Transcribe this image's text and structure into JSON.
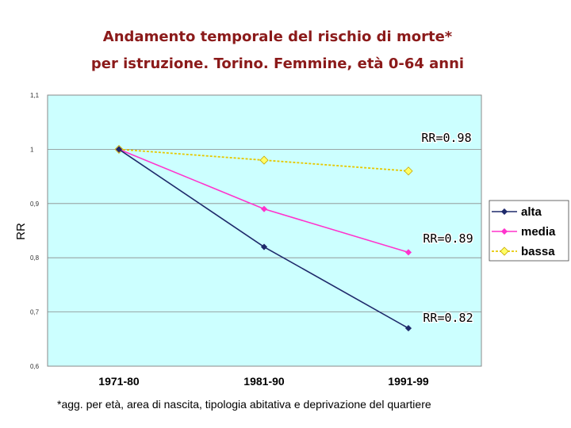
{
  "header": {
    "title_line1": "Andamento temporale del rischio di morte*",
    "title_line2": "per istruzione. Torino. Femmine, età 0-64 anni"
  },
  "footnote": "*agg. per età, area di nascita, tipologia abitativa e deprivazione del quartiere",
  "colors": {
    "plot_background": "#ccffff",
    "alta": "#1f2a6b",
    "media": "#ff33cc",
    "bassa": "#e6c800",
    "bassa_marker": "#ffff66",
    "title": "#8b1a1a"
  },
  "chart_data": {
    "type": "line",
    "title": "",
    "xlabel": "",
    "ylabel": "RR",
    "ylim": [
      0.6,
      1.1
    ],
    "yticks": [
      0.6,
      0.7,
      0.8,
      0.9,
      1.0,
      1.1
    ],
    "ytick_labels": [
      "0,6",
      "0,7",
      "0,8",
      "0,9",
      "1",
      "1,1"
    ],
    "categories": [
      "1971-80",
      "1981-90",
      "1991-99"
    ],
    "grid": "horizontal",
    "legend_position": "right",
    "series": [
      {
        "name": "alta",
        "values": [
          1.0,
          0.82,
          0.67
        ],
        "marker": "diamond"
      },
      {
        "name": "media",
        "values": [
          1.0,
          0.89,
          0.81
        ],
        "marker": "diamond"
      },
      {
        "name": "bassa",
        "values": [
          1.0,
          0.98,
          0.96
        ],
        "marker": "diamond"
      }
    ],
    "annotations": [
      {
        "text": "RR=0.98",
        "series": "bassa"
      },
      {
        "text": "RR=0.89",
        "series": "media"
      },
      {
        "text": "RR=0.82",
        "series": "alta"
      }
    ]
  }
}
